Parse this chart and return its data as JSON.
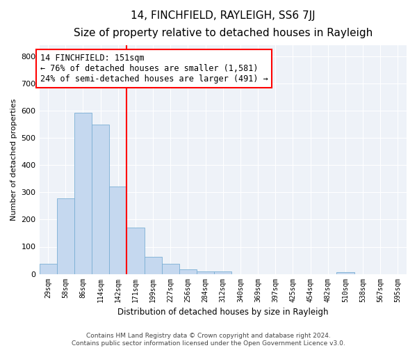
{
  "title": "14, FINCHFIELD, RAYLEIGH, SS6 7JJ",
  "subtitle": "Size of property relative to detached houses in Rayleigh",
  "xlabel": "Distribution of detached houses by size in Rayleigh",
  "ylabel": "Number of detached properties",
  "bar_labels": [
    "29sqm",
    "58sqm",
    "86sqm",
    "114sqm",
    "142sqm",
    "171sqm",
    "199sqm",
    "227sqm",
    "256sqm",
    "284sqm",
    "312sqm",
    "340sqm",
    "369sqm",
    "397sqm",
    "425sqm",
    "454sqm",
    "482sqm",
    "510sqm",
    "538sqm",
    "567sqm",
    "595sqm"
  ],
  "bar_values": [
    37,
    278,
    592,
    550,
    322,
    170,
    63,
    37,
    18,
    8,
    8,
    0,
    0,
    0,
    0,
    0,
    0,
    7,
    0,
    0,
    0
  ],
  "bar_color": "#c5d8ef",
  "bar_edge_color": "#7aafd4",
  "vline_x": 4.5,
  "vline_color": "red",
  "annotation_text": "14 FINCHFIELD: 151sqm\n← 76% of detached houses are smaller (1,581)\n24% of semi-detached houses are larger (491) →",
  "annotation_box_color": "white",
  "annotation_box_edge": "red",
  "ylim": [
    0,
    840
  ],
  "yticks": [
    0,
    100,
    200,
    300,
    400,
    500,
    600,
    700,
    800
  ],
  "footer": "Contains HM Land Registry data © Crown copyright and database right 2024.\nContains public sector information licensed under the Open Government Licence v3.0.",
  "bg_color": "#eef2f8",
  "title_fontsize": 11,
  "subtitle_fontsize": 9,
  "footer_fontsize": 6.5,
  "annot_fontsize": 8.5
}
